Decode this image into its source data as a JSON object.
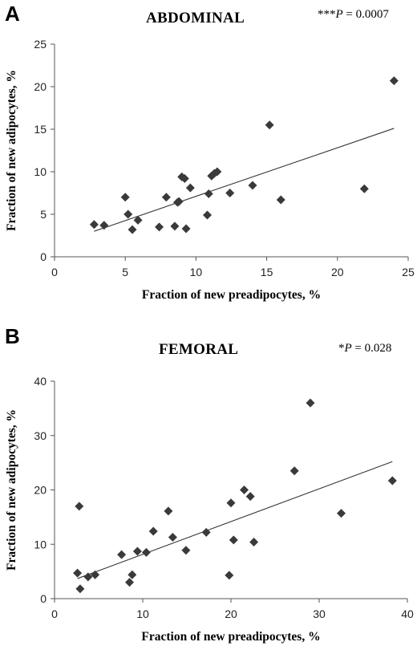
{
  "chart_data": [
    {
      "type": "scatter",
      "panel_label": "A",
      "title": "ABDOMINAL",
      "annotation": {
        "prefix": "***",
        "italic": "P",
        "suffix": " = 0.0007"
      },
      "xlabel": "Fraction of new preadipocytes, %",
      "ylabel": "Fraction of new adipocytes, %",
      "xlim": [
        0,
        25
      ],
      "ylim": [
        0,
        25
      ],
      "xticks": [
        0,
        5,
        10,
        15,
        20,
        25
      ],
      "yticks": [
        0,
        5,
        10,
        15,
        20,
        25
      ],
      "grid": false,
      "marker_color": "#3a3a3a",
      "points": [
        {
          "x": 2.8,
          "y": 3.8
        },
        {
          "x": 3.5,
          "y": 3.7
        },
        {
          "x": 5.0,
          "y": 7.0
        },
        {
          "x": 5.2,
          "y": 5.0
        },
        {
          "x": 5.5,
          "y": 3.2
        },
        {
          "x": 5.9,
          "y": 4.3
        },
        {
          "x": 7.4,
          "y": 3.5
        },
        {
          "x": 7.9,
          "y": 7.0
        },
        {
          "x": 8.5,
          "y": 3.6
        },
        {
          "x": 8.7,
          "y": 6.4
        },
        {
          "x": 8.8,
          "y": 6.5
        },
        {
          "x": 9.0,
          "y": 9.4
        },
        {
          "x": 9.2,
          "y": 9.2
        },
        {
          "x": 9.3,
          "y": 3.3
        },
        {
          "x": 9.6,
          "y": 8.1
        },
        {
          "x": 10.8,
          "y": 4.9
        },
        {
          "x": 10.9,
          "y": 7.4
        },
        {
          "x": 11.1,
          "y": 9.5
        },
        {
          "x": 11.3,
          "y": 9.8
        },
        {
          "x": 11.5,
          "y": 10.0
        },
        {
          "x": 12.4,
          "y": 7.5
        },
        {
          "x": 14.0,
          "y": 8.4
        },
        {
          "x": 15.2,
          "y": 15.5
        },
        {
          "x": 16.0,
          "y": 6.7
        },
        {
          "x": 21.9,
          "y": 8.0
        },
        {
          "x": 24.0,
          "y": 20.7
        }
      ],
      "trendline": {
        "x": [
          2.8,
          24.0
        ],
        "y": [
          3.0,
          15.1
        ]
      }
    },
    {
      "type": "scatter",
      "panel_label": "B",
      "title": "FEMORAL",
      "annotation": {
        "prefix": "*",
        "italic": "P",
        "suffix": " = 0.028"
      },
      "xlabel": "Fraction of new preadipocytes, %",
      "ylabel": "Fraction of new adipocytes, %",
      "xlim": [
        0,
        40
      ],
      "ylim": [
        0,
        40
      ],
      "xticks": [
        0,
        10,
        20,
        30,
        40
      ],
      "yticks": [
        0,
        10,
        20,
        30,
        40
      ],
      "grid": false,
      "marker_color": "#3a3a3a",
      "points": [
        {
          "x": 2.6,
          "y": 4.7
        },
        {
          "x": 2.8,
          "y": 17.0
        },
        {
          "x": 2.9,
          "y": 1.8
        },
        {
          "x": 3.8,
          "y": 4.0
        },
        {
          "x": 4.6,
          "y": 4.4
        },
        {
          "x": 7.6,
          "y": 8.1
        },
        {
          "x": 8.5,
          "y": 3.0
        },
        {
          "x": 8.8,
          "y": 4.4
        },
        {
          "x": 9.4,
          "y": 8.7
        },
        {
          "x": 10.4,
          "y": 8.5
        },
        {
          "x": 11.2,
          "y": 12.4
        },
        {
          "x": 12.9,
          "y": 16.1
        },
        {
          "x": 13.4,
          "y": 11.3
        },
        {
          "x": 14.9,
          "y": 8.9
        },
        {
          "x": 17.2,
          "y": 12.2
        },
        {
          "x": 19.8,
          "y": 4.3
        },
        {
          "x": 20.0,
          "y": 17.6
        },
        {
          "x": 20.3,
          "y": 10.8
        },
        {
          "x": 21.5,
          "y": 20.0
        },
        {
          "x": 22.2,
          "y": 18.8
        },
        {
          "x": 22.6,
          "y": 10.4
        },
        {
          "x": 27.2,
          "y": 23.5
        },
        {
          "x": 29.0,
          "y": 36.0
        },
        {
          "x": 32.5,
          "y": 15.7
        },
        {
          "x": 38.3,
          "y": 21.7
        }
      ],
      "trendline": {
        "x": [
          2.6,
          38.3
        ],
        "y": [
          3.7,
          25.2
        ]
      }
    }
  ]
}
